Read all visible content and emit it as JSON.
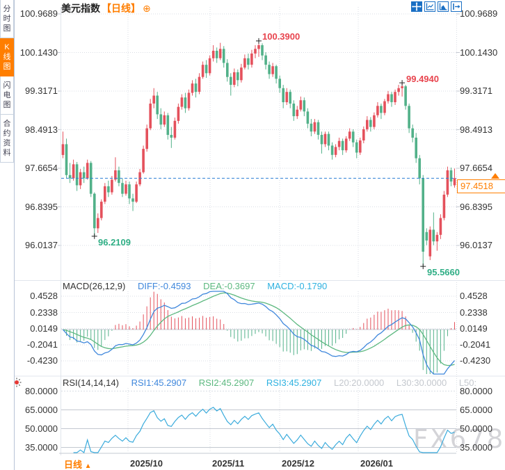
{
  "header": {
    "title": "美元指数",
    "period_badge": "【日线】",
    "add_icon": "⊕"
  },
  "sidebar": {
    "items": [
      {
        "label": "分时图",
        "active": false
      },
      {
        "label": "K线图",
        "active": true
      },
      {
        "label": "闪电图",
        "active": false
      },
      {
        "label": "合约资料",
        "active": false
      }
    ]
  },
  "toolbar": {
    "icons": [
      "crosshair-pan-icon",
      "zoom-fit-icon",
      "chart-area-icon",
      "panel-collapse-icon"
    ]
  },
  "main_chart": {
    "y_axis_labels": [
      "100.9689",
      "100.1430",
      "99.3171",
      "98.4913",
      "97.6654",
      "96.8395",
      "96.0137"
    ],
    "annotations": {
      "high1": "100.3900",
      "high2": "99.4940",
      "low1": "96.2109",
      "low2": "95.5660"
    },
    "current_price": "97.4518"
  },
  "macd_panel": {
    "title": "MACD(26,12,9)",
    "diff_label": "DIFF:-0.4593",
    "dea_label": "DEA:-0.3697",
    "macd_label": "MACD:-0.1790",
    "y_axis_labels": [
      "0.4528",
      "0.2338",
      "0.0149",
      "-0.2041",
      "-0.4230"
    ]
  },
  "rsi_panel": {
    "title": "RSI(14,14,14)",
    "rsi1_label": "RSI1:45.2907",
    "rsi2_label": "RSI2:45.2907",
    "rsi3_label": "RSI3:45.2907",
    "l20_label": "L20:20.0000",
    "l30_label": "L30:30.0000",
    "l50_label": "L50:",
    "y_axis_labels": [
      "80.0000",
      "65.0000",
      "50.0000",
      "35.0000"
    ]
  },
  "bottom_bar": {
    "period_label": "日线",
    "arrow": "▲",
    "x_axis_labels": [
      "2025/10",
      "2025/11",
      "2025/12",
      "2026/01"
    ]
  },
  "watermark": "FX678",
  "colors": {
    "up": "#e4515c",
    "down": "#52b189",
    "diff_line": "#3f87dc",
    "dea_line": "#5cb87f",
    "macd_value": "#2db1e0",
    "rsi_line": "#3aabdc",
    "accent_orange": "#ff7e00",
    "current_price_line": "#2b7fd4",
    "annotation_red": "#e8444e",
    "annotation_green": "#2fae85",
    "grid": "#d9dde4",
    "grid_solid": "#c3c8d0",
    "axis_text": "#333333",
    "toolbar_blue": "#1a6fc4",
    "watermark_gray": "#d4d4d8",
    "cross_marker": "#222222"
  },
  "chart_data": [
    {
      "type": "candlestick",
      "title": "美元指数 日线 (US Dollar Index, Daily)",
      "color_convention": "red = up, green = down",
      "x_axis": {
        "tick_labels": [
          "2025/10",
          "2025/11",
          "2025/12",
          "2026/01"
        ]
      },
      "y_axis": {
        "tick_labels": [
          100.9689,
          100.143,
          99.3171,
          98.4913,
          97.6654,
          96.8395,
          96.0137
        ],
        "range": [
          95.45,
          101.1
        ]
      },
      "marked_high": 100.39,
      "swing_high": 99.494,
      "swing_low": 96.2109,
      "marked_low": 95.566,
      "last_price": 97.4518,
      "ohlc": [
        [
          97.95,
          98.45,
          97.88,
          98.18
        ],
        [
          98.18,
          98.3,
          97.45,
          97.52
        ],
        [
          97.52,
          97.78,
          97.35,
          97.45
        ],
        [
          97.45,
          97.85,
          97.4,
          97.75
        ],
        [
          97.75,
          97.8,
          97.18,
          97.3
        ],
        [
          97.3,
          97.65,
          97.22,
          97.58
        ],
        [
          97.58,
          97.7,
          97.35,
          97.45
        ],
        [
          97.45,
          97.85,
          97.42,
          97.78
        ],
        [
          97.78,
          97.82,
          97.05,
          97.12
        ],
        [
          97.12,
          97.15,
          96.211,
          96.38
        ],
        [
          96.38,
          96.7,
          96.28,
          96.6
        ],
        [
          96.6,
          97.0,
          96.55,
          96.95
        ],
        [
          96.95,
          97.35,
          96.9,
          97.28
        ],
        [
          97.28,
          97.4,
          97.05,
          97.15
        ],
        [
          97.15,
          97.5,
          97.1,
          97.42
        ],
        [
          97.42,
          97.9,
          97.38,
          97.62
        ],
        [
          97.62,
          97.7,
          97.28,
          97.35
        ],
        [
          97.35,
          97.45,
          97.05,
          97.12
        ],
        [
          97.12,
          97.4,
          97.08,
          97.32
        ],
        [
          97.32,
          97.38,
          96.9,
          97.02
        ],
        [
          97.02,
          97.12,
          96.75,
          96.95
        ],
        [
          96.95,
          97.38,
          96.92,
          97.32
        ],
        [
          97.32,
          97.65,
          97.28,
          97.58
        ],
        [
          97.58,
          98.15,
          97.55,
          98.08
        ],
        [
          98.08,
          98.6,
          98.02,
          98.52
        ],
        [
          98.52,
          99.15,
          98.48,
          99.05
        ],
        [
          99.05,
          99.38,
          98.95,
          99.22
        ],
        [
          99.22,
          99.3,
          98.72,
          98.82
        ],
        [
          98.82,
          98.95,
          98.5,
          98.6
        ],
        [
          98.6,
          98.88,
          98.55,
          98.8
        ],
        [
          98.8,
          98.85,
          98.28,
          98.38
        ],
        [
          98.38,
          98.55,
          98.1,
          98.32
        ],
        [
          98.32,
          98.75,
          98.28,
          98.68
        ],
        [
          98.68,
          99.05,
          98.62,
          98.98
        ],
        [
          98.98,
          99.25,
          98.92,
          99.18
        ],
        [
          99.18,
          99.28,
          98.85,
          98.95
        ],
        [
          98.95,
          99.35,
          98.9,
          99.28
        ],
        [
          99.28,
          99.55,
          99.22,
          99.48
        ],
        [
          99.48,
          99.58,
          99.18,
          99.3
        ],
        [
          99.3,
          99.7,
          99.25,
          99.62
        ],
        [
          99.62,
          99.95,
          99.58,
          99.88
        ],
        [
          99.88,
          99.98,
          99.6,
          99.7
        ],
        [
          99.7,
          100.08,
          99.65,
          100.02
        ],
        [
          100.02,
          100.3,
          99.95,
          100.18
        ],
        [
          100.18,
          100.25,
          99.92,
          100.02
        ],
        [
          100.02,
          100.35,
          99.98,
          100.22
        ],
        [
          100.22,
          100.28,
          99.82,
          99.92
        ],
        [
          99.92,
          100.0,
          99.52,
          99.62
        ],
        [
          99.62,
          99.7,
          99.22,
          99.45
        ],
        [
          99.45,
          99.8,
          99.4,
          99.72
        ],
        [
          99.72,
          99.78,
          99.42,
          99.55
        ],
        [
          99.55,
          99.9,
          99.5,
          99.82
        ],
        [
          99.82,
          100.1,
          99.78,
          100.02
        ],
        [
          100.02,
          100.12,
          99.78,
          99.88
        ],
        [
          99.88,
          100.2,
          99.82,
          100.12
        ],
        [
          100.12,
          100.3,
          100.02,
          100.22
        ],
        [
          100.22,
          100.39,
          100.05,
          100.3
        ],
        [
          100.3,
          100.34,
          99.98,
          100.08
        ],
        [
          100.08,
          100.15,
          99.78,
          99.88
        ],
        [
          99.88,
          99.95,
          99.58,
          99.68
        ],
        [
          99.68,
          99.92,
          99.62,
          99.85
        ],
        [
          99.85,
          99.88,
          99.48,
          99.58
        ],
        [
          99.58,
          99.65,
          99.28,
          99.38
        ],
        [
          99.38,
          99.45,
          98.95,
          99.08
        ],
        [
          99.08,
          99.38,
          99.02,
          99.3
        ],
        [
          99.3,
          99.35,
          98.95,
          99.05
        ],
        [
          99.05,
          99.12,
          98.68,
          98.78
        ],
        [
          98.78,
          99.0,
          98.72,
          98.92
        ],
        [
          98.92,
          99.2,
          98.88,
          99.12
        ],
        [
          99.12,
          99.18,
          98.78,
          98.88
        ],
        [
          98.88,
          98.95,
          98.52,
          98.62
        ],
        [
          98.62,
          98.72,
          98.35,
          98.45
        ],
        [
          98.45,
          98.72,
          98.4,
          98.65
        ],
        [
          98.65,
          98.7,
          98.28,
          98.38
        ],
        [
          98.38,
          98.45,
          97.98,
          98.18
        ],
        [
          98.18,
          98.45,
          98.12,
          98.4
        ],
        [
          98.4,
          98.45,
          98.05,
          98.15
        ],
        [
          98.15,
          98.22,
          97.85,
          97.95
        ],
        [
          97.95,
          98.18,
          97.9,
          98.12
        ],
        [
          98.12,
          98.32,
          98.05,
          98.25
        ],
        [
          98.25,
          98.3,
          97.95,
          98.05
        ],
        [
          98.05,
          98.35,
          98.0,
          98.3
        ],
        [
          98.3,
          98.52,
          98.25,
          98.45
        ],
        [
          98.45,
          98.5,
          98.12,
          98.22
        ],
        [
          98.22,
          98.28,
          97.88,
          98.0
        ],
        [
          98.0,
          98.32,
          97.95,
          98.26
        ],
        [
          98.26,
          98.56,
          98.2,
          98.5
        ],
        [
          98.5,
          98.78,
          98.45,
          98.7
        ],
        [
          98.7,
          98.76,
          98.45,
          98.55
        ],
        [
          98.55,
          98.86,
          98.5,
          98.8
        ],
        [
          98.8,
          99.08,
          98.75,
          99.0
        ],
        [
          99.0,
          99.05,
          98.72,
          98.85
        ],
        [
          98.85,
          99.15,
          98.8,
          99.1
        ],
        [
          99.1,
          99.32,
          99.05,
          99.25
        ],
        [
          99.25,
          99.3,
          98.98,
          99.08
        ],
        [
          99.08,
          99.35,
          99.02,
          99.3
        ],
        [
          99.3,
          99.45,
          99.22,
          99.38
        ],
        [
          99.38,
          99.494,
          99.2,
          99.42
        ],
        [
          99.42,
          99.45,
          98.92,
          99.0
        ],
        [
          99.0,
          99.05,
          98.42,
          98.52
        ],
        [
          98.52,
          98.6,
          98.22,
          98.32
        ],
        [
          98.32,
          98.42,
          97.78,
          97.88
        ],
        [
          97.88,
          97.95,
          97.32,
          97.45
        ],
        [
          97.45,
          97.52,
          95.566,
          95.88
        ],
        [
          96.3,
          96.38,
          96.02,
          96.12
        ],
        [
          95.78,
          96.42,
          95.7,
          96.35
        ],
        [
          96.35,
          96.72,
          96.02,
          96.1
        ],
        [
          96.1,
          96.3,
          95.9,
          96.24
        ],
        [
          96.24,
          96.68,
          96.15,
          96.6
        ],
        [
          96.6,
          97.18,
          96.55,
          97.1
        ],
        [
          97.1,
          97.7,
          97.05,
          97.62
        ],
        [
          97.62,
          97.68,
          97.28,
          97.38
        ],
        [
          97.3,
          97.66,
          97.25,
          97.4518
        ]
      ]
    },
    {
      "type": "line",
      "name": "MACD(26,12,9)",
      "readout": {
        "DIFF": -0.4593,
        "DEA": -0.3697,
        "MACD": -0.179
      },
      "y_axis": {
        "tick_labels": [
          0.4528,
          0.2338,
          0.0149,
          -0.2041,
          -0.423
        ]
      },
      "derived_from": "candlestick closes: DIFF=EMA12-EMA26, DEA=EMA9(DIFF), hist=2*(DIFF-DEA)",
      "legend_position": "top-left inline"
    },
    {
      "type": "line",
      "name": "RSI(14,14,14)",
      "readout": {
        "RSI1": 45.2907,
        "RSI2": 45.2907,
        "RSI3": 45.2907,
        "L20": 20.0,
        "L30": 30.0
      },
      "y_axis": {
        "tick_labels": [
          80,
          65,
          50,
          35
        ]
      },
      "derived_from": "candlestick closes: Wilder RSI period 14 (three identical overlapping lines)",
      "grid": "horizontal lines at 65 / 50 / 35, dashed at 80"
    }
  ]
}
